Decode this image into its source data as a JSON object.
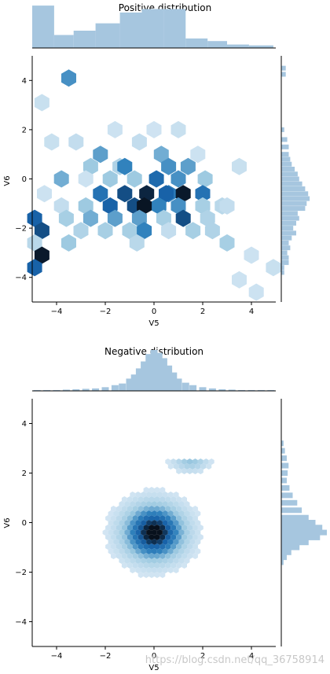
{
  "watermark": "https://blog.csdn.net/qq_36758914",
  "colors": {
    "hist": "#a6c6df",
    "hex_light": "#deebf7",
    "hex_dark": "#08111d",
    "axis": "#000000"
  },
  "chart_data": [
    {
      "type": "hexbin",
      "title": "Positive distribution",
      "xlabel": "V5",
      "ylabel": "V6",
      "xlim": [
        -5,
        5
      ],
      "ylim": [
        -5,
        5
      ],
      "xticks": [
        "−4",
        "−2",
        "0",
        "2",
        "4"
      ],
      "yticks": [
        "−4",
        "−2",
        "0",
        "2",
        "4"
      ],
      "xtick_values": [
        -4,
        -2,
        0,
        2,
        4
      ],
      "ytick_values": [
        -4,
        -2,
        0,
        2,
        4
      ],
      "hex_bins": [
        {
          "x": -3.5,
          "y": 4.1,
          "level": 0.55
        },
        {
          "x": -4.6,
          "y": 3.1,
          "level": 0.12
        },
        {
          "x": -4.2,
          "y": 1.5,
          "level": 0.12
        },
        {
          "x": -1.6,
          "y": 2.0,
          "level": 0.1
        },
        {
          "x": 0.0,
          "y": 2.0,
          "level": 0.08
        },
        {
          "x": 1.0,
          "y": 2.0,
          "level": 0.12
        },
        {
          "x": -3.2,
          "y": 1.5,
          "level": 0.15
        },
        {
          "x": -2.2,
          "y": 1.0,
          "level": 0.5
        },
        {
          "x": -0.6,
          "y": 1.5,
          "level": 0.15
        },
        {
          "x": 0.3,
          "y": 1.0,
          "level": 0.45
        },
        {
          "x": 1.8,
          "y": 1.0,
          "level": 0.1
        },
        {
          "x": -2.6,
          "y": 0.5,
          "level": 0.35
        },
        {
          "x": -1.4,
          "y": 0.5,
          "level": 0.25
        },
        {
          "x": -1.2,
          "y": 0.5,
          "level": 0.6
        },
        {
          "x": 0.6,
          "y": 0.5,
          "level": 0.55
        },
        {
          "x": 1.4,
          "y": 0.5,
          "level": 0.5
        },
        {
          "x": 3.5,
          "y": 0.5,
          "level": 0.12
        },
        {
          "x": -3.8,
          "y": 0.0,
          "level": 0.45
        },
        {
          "x": -2.8,
          "y": 0.0,
          "level": 0.1
        },
        {
          "x": -1.8,
          "y": 0.0,
          "level": 0.35
        },
        {
          "x": -0.8,
          "y": 0.0,
          "level": 0.35
        },
        {
          "x": 0.1,
          "y": 0.0,
          "level": 0.75
        },
        {
          "x": 1.0,
          "y": 0.0,
          "level": 0.55
        },
        {
          "x": 2.1,
          "y": 0.0,
          "level": 0.35
        },
        {
          "x": -4.5,
          "y": -0.6,
          "level": 0.1
        },
        {
          "x": -2.2,
          "y": -0.6,
          "level": 0.7
        },
        {
          "x": -1.2,
          "y": -0.6,
          "level": 0.85
        },
        {
          "x": -0.3,
          "y": -0.6,
          "level": 0.95
        },
        {
          "x": 0.6,
          "y": -0.6,
          "level": 0.65
        },
        {
          "x": 0.5,
          "y": -0.6,
          "level": 0.8
        },
        {
          "x": 1.2,
          "y": -0.6,
          "level": 0.98
        },
        {
          "x": 2.0,
          "y": -0.6,
          "level": 0.7
        },
        {
          "x": -3.8,
          "y": -1.1,
          "level": 0.15
        },
        {
          "x": -2.8,
          "y": -1.1,
          "level": 0.35
        },
        {
          "x": -1.8,
          "y": -1.1,
          "level": 0.8
        },
        {
          "x": -0.8,
          "y": -1.1,
          "level": 0.85
        },
        {
          "x": 0.2,
          "y": -1.1,
          "level": 0.6
        },
        {
          "x": -0.4,
          "y": -1.1,
          "level": 0.99
        },
        {
          "x": 1.0,
          "y": -1.1,
          "level": 0.55
        },
        {
          "x": 2.0,
          "y": -1.1,
          "level": 0.3
        },
        {
          "x": 2.8,
          "y": -1.1,
          "level": 0.2
        },
        {
          "x": 3.0,
          "y": -1.1,
          "level": 0.15
        },
        {
          "x": -4.9,
          "y": -1.6,
          "level": 0.8
        },
        {
          "x": -3.6,
          "y": -1.6,
          "level": 0.3
        },
        {
          "x": -2.6,
          "y": -1.6,
          "level": 0.45
        },
        {
          "x": -1.6,
          "y": -1.6,
          "level": 0.5
        },
        {
          "x": -0.6,
          "y": -1.6,
          "level": 0.5
        },
        {
          "x": 0.4,
          "y": -1.6,
          "level": 0.3
        },
        {
          "x": 1.2,
          "y": -1.6,
          "level": 0.85
        },
        {
          "x": 2.2,
          "y": -1.6,
          "level": 0.25
        },
        {
          "x": -4.6,
          "y": -2.1,
          "level": 0.85
        },
        {
          "x": -3.0,
          "y": -2.1,
          "level": 0.25
        },
        {
          "x": -2.0,
          "y": -2.1,
          "level": 0.3
        },
        {
          "x": -1.0,
          "y": -2.1,
          "level": 0.3
        },
        {
          "x": -0.4,
          "y": -2.1,
          "level": 0.6
        },
        {
          "x": 0.6,
          "y": -2.1,
          "level": 0.15
        },
        {
          "x": 1.6,
          "y": -2.1,
          "level": 0.3
        },
        {
          "x": 2.4,
          "y": -2.1,
          "level": 0.25
        },
        {
          "x": -4.9,
          "y": -2.6,
          "level": 0.2
        },
        {
          "x": -3.5,
          "y": -2.6,
          "level": 0.35
        },
        {
          "x": -0.7,
          "y": -2.6,
          "level": 0.2
        },
        {
          "x": 3.0,
          "y": -2.6,
          "level": 0.3
        },
        {
          "x": -4.6,
          "y": -3.1,
          "level": 0.98
        },
        {
          "x": -4.9,
          "y": -3.6,
          "level": 0.8
        },
        {
          "x": 4.0,
          "y": -3.1,
          "level": 0.1
        },
        {
          "x": 4.9,
          "y": -3.6,
          "level": 0.12
        },
        {
          "x": 3.5,
          "y": -4.1,
          "level": 0.1
        },
        {
          "x": 4.2,
          "y": -4.6,
          "level": 0.1
        }
      ],
      "marginal_x": {
        "bin_edges": [
          -5,
          -4.1,
          -3.3,
          -2.4,
          -1.4,
          -0.5,
          0.4,
          1.3,
          2.2,
          3.0,
          3.9,
          4.9
        ],
        "heights": [
          0.98,
          0.3,
          0.4,
          0.57,
          0.82,
          0.9,
          0.9,
          0.22,
          0.16,
          0.08,
          0.06
        ]
      },
      "marginal_y": {
        "bin_centers": [
          4.5,
          4.25,
          2.0,
          1.6,
          1.3,
          1.0,
          0.8,
          0.6,
          0.4,
          0.2,
          0.0,
          -0.2,
          -0.4,
          -0.6,
          -0.8,
          -1.0,
          -1.2,
          -1.4,
          -1.6,
          -1.8,
          -2.0,
          -2.2,
          -2.4,
          -2.6,
          -2.8,
          -3.0,
          -3.2,
          -3.4,
          -3.6,
          -3.8
        ],
        "heights": [
          0.15,
          0.15,
          0.1,
          0.2,
          0.25,
          0.25,
          0.3,
          0.35,
          0.45,
          0.55,
          0.6,
          0.7,
          0.8,
          0.9,
          0.95,
          0.85,
          0.8,
          0.55,
          0.6,
          0.5,
          0.4,
          0.5,
          0.35,
          0.25,
          0.3,
          0.2,
          0.25,
          0.25,
          0.1,
          0.1
        ]
      }
    },
    {
      "type": "hexbin",
      "title": "Negative distribution",
      "xlabel": "V5",
      "ylabel": "V6",
      "xlim": [
        -5,
        5
      ],
      "ylim": [
        -5,
        5
      ],
      "xticks": [
        "−4",
        "−2",
        "0",
        "2",
        "4"
      ],
      "yticks": [
        "−4",
        "−2",
        "0",
        "2",
        "4"
      ],
      "xtick_values": [
        -4,
        -2,
        0,
        2,
        4
      ],
      "ytick_values": [
        -4,
        -2,
        0,
        2,
        4
      ],
      "main_cluster": {
        "center": [
          0.0,
          -0.4
        ],
        "spread": [
          0.85,
          0.75
        ]
      },
      "secondary_cluster": {
        "center": [
          1.5,
          2.5
        ],
        "spread": [
          0.5,
          0.3
        ]
      },
      "marginal_x": {
        "bin_centers": [
          -4.8,
          -4.4,
          -4.0,
          -3.6,
          -3.2,
          -2.8,
          -2.4,
          -2.0,
          -1.6,
          -1.3,
          -1.0,
          -0.8,
          -0.6,
          -0.4,
          -0.2,
          0.0,
          0.2,
          0.4,
          0.6,
          0.8,
          1.0,
          1.3,
          1.6,
          2.0,
          2.4,
          2.8,
          3.2,
          3.6,
          4.0,
          4.4,
          4.8
        ],
        "heights": [
          0.02,
          0.02,
          0.02,
          0.03,
          0.04,
          0.05,
          0.06,
          0.09,
          0.14,
          0.18,
          0.3,
          0.4,
          0.55,
          0.72,
          0.9,
          1.0,
          0.93,
          0.8,
          0.62,
          0.45,
          0.3,
          0.2,
          0.14,
          0.09,
          0.06,
          0.04,
          0.03,
          0.02,
          0.02,
          0.02,
          0.02
        ]
      },
      "marginal_y": {
        "bin_centers": [
          3.2,
          2.9,
          2.6,
          2.3,
          2.0,
          1.7,
          1.4,
          1.1,
          0.8,
          0.5,
          0.2,
          0.0,
          -0.2,
          -0.4,
          -0.6,
          -0.8,
          -1.0,
          -1.2,
          -1.4,
          -1.6
        ],
        "heights": [
          0.05,
          0.08,
          0.12,
          0.16,
          0.14,
          0.12,
          0.18,
          0.25,
          0.35,
          0.45,
          0.6,
          0.75,
          0.9,
          1.0,
          0.85,
          0.6,
          0.4,
          0.22,
          0.12,
          0.05
        ]
      }
    }
  ]
}
